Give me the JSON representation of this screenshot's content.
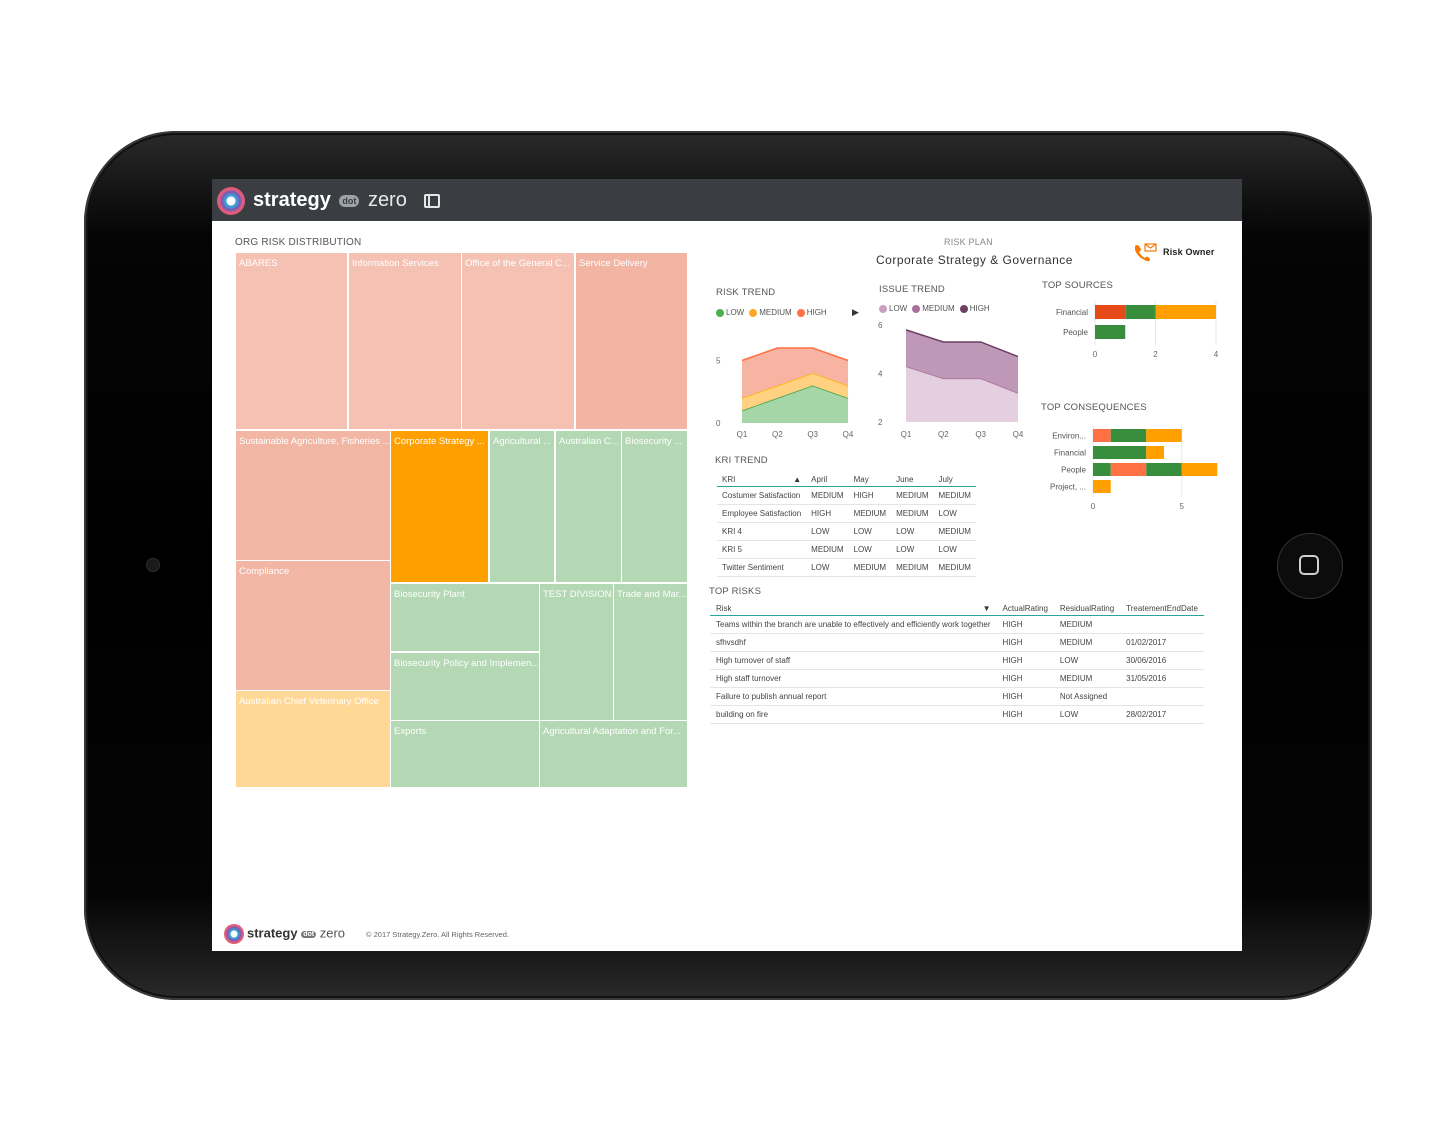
{
  "app": {
    "brand_main": "strategy",
    "brand_dot": "dot",
    "brand_zero": "zero"
  },
  "treemap": {
    "title": "ORG RISK DISTRIBUTION",
    "tiles": [
      {
        "label": "ABARES",
        "color": "#f5c1b3"
      },
      {
        "label": "Information Services",
        "color": "#f5c1b3"
      },
      {
        "label": "Office of the General C...",
        "color": "#f5c1b3"
      },
      {
        "label": "Service Delivery",
        "color": "#f2b4a3"
      },
      {
        "label": "Sustainable Agriculture, Fisheries ...",
        "color": "#f2b6a5"
      },
      {
        "label": "Corporate Strategy ...",
        "color": "#ffa000"
      },
      {
        "label": "Agricultural ...",
        "color": "#b3d8b3"
      },
      {
        "label": "Australian C...",
        "color": "#b3d8b3"
      },
      {
        "label": "Biosecurity ...",
        "color": "#b3d8b3"
      },
      {
        "label": "Compliance",
        "color": "#f2b6a5"
      },
      {
        "label": "Biosecurity Plant",
        "color": "#b3d8b3"
      },
      {
        "label": "TEST DIVISION",
        "color": "#b3d8b3"
      },
      {
        "label": "Trade and Mar...",
        "color": "#b3d8b3"
      },
      {
        "label": "Biosecurity Policy and Implemen...",
        "color": "#b3d8b3"
      },
      {
        "label": "Australian Chief Veterinary Office",
        "color": "#ffd898"
      },
      {
        "label": "Exports",
        "color": "#b3d8b3"
      },
      {
        "label": "Agricultural Adaptation and For...",
        "color": "#b3d8b3"
      }
    ]
  },
  "risk_plan": {
    "caption": "RISK PLAN",
    "name": "Corporate Strategy & Governance",
    "owner_label": "Risk Owner"
  },
  "risk_trend": {
    "title": "RISK TREND",
    "legend": [
      {
        "label": "LOW",
        "color": "#4caf50"
      },
      {
        "label": "MEDIUM",
        "color": "#ffa726"
      },
      {
        "label": "HIGH",
        "color": "#ff7043"
      }
    ],
    "chart_data": {
      "type": "area",
      "categories": [
        "Q1",
        "Q2",
        "Q3",
        "Q4"
      ],
      "yticks": [
        "0",
        "5"
      ],
      "ylim": [
        0,
        8
      ],
      "series": [
        {
          "name": "LOW",
          "values": [
            1,
            2,
            3,
            2
          ]
        },
        {
          "name": "MEDIUM",
          "values": [
            1,
            1,
            1,
            1
          ]
        },
        {
          "name": "HIGH",
          "values": [
            3,
            3,
            2,
            2
          ]
        }
      ]
    }
  },
  "issue_trend": {
    "title": "ISSUE TREND",
    "legend": [
      {
        "label": "LOW",
        "color": "#c9a0c0"
      },
      {
        "label": "MEDIUM",
        "color": "#a86f9a"
      },
      {
        "label": "HIGH",
        "color": "#6d3f63"
      }
    ],
    "chart_data": {
      "type": "area",
      "categories": [
        "Q1",
        "Q2",
        "Q3",
        "Q4"
      ],
      "yticks": [
        "2",
        "4",
        "6"
      ],
      "ylim": [
        2,
        6
      ],
      "series": [
        {
          "name": "LOW",
          "values": [
            4.3,
            3.8,
            3.8,
            3.2
          ]
        },
        {
          "name": "HIGH",
          "values": [
            5.8,
            5.3,
            5.3,
            4.7
          ]
        }
      ]
    }
  },
  "top_sources": {
    "title": "TOP SOURCES",
    "chart_data": {
      "type": "bar",
      "orientation": "horizontal",
      "categories": [
        "Financial",
        "People"
      ],
      "xticks": [
        "0",
        "2",
        "4"
      ],
      "xlim": [
        0,
        4
      ],
      "segments": [
        [
          {
            "value": 1,
            "color": "#e64a19"
          },
          {
            "value": 1,
            "color": "#388e3c"
          },
          {
            "value": 2,
            "color": "#ffa000"
          }
        ],
        [
          {
            "value": 1,
            "color": "#388e3c"
          }
        ]
      ]
    }
  },
  "top_consequences": {
    "title": "TOP CONSEQUENCES",
    "chart_data": {
      "type": "bar",
      "orientation": "horizontal",
      "categories": [
        "Environ...",
        "Financial",
        "People",
        "Project, ..."
      ],
      "xticks": [
        "0",
        "5"
      ],
      "xlim": [
        0,
        8
      ],
      "segments": [
        [
          {
            "value": 1,
            "color": "#ff7043"
          },
          {
            "value": 2,
            "color": "#388e3c"
          },
          {
            "value": 2,
            "color": "#ffa000"
          }
        ],
        [
          {
            "value": 3,
            "color": "#388e3c"
          },
          {
            "value": 1,
            "color": "#ffa000"
          }
        ],
        [
          {
            "value": 1,
            "color": "#388e3c"
          },
          {
            "value": 2,
            "color": "#ff7043"
          },
          {
            "value": 2,
            "color": "#388e3c"
          },
          {
            "value": 2,
            "color": "#ffa000"
          }
        ],
        [
          {
            "value": 1,
            "color": "#ffa000"
          }
        ]
      ]
    }
  },
  "kri_trend": {
    "title": "KRI TREND",
    "columns": [
      "KRI",
      "April",
      "May",
      "June",
      "July"
    ],
    "rows": [
      [
        "Costumer Satisfaction",
        "MEDIUM",
        "HIGH",
        "MEDIUM",
        "MEDIUM"
      ],
      [
        "Employee Satisfaction",
        "HIGH",
        "MEDIUM",
        "MEDIUM",
        "LOW"
      ],
      [
        "KRI 4",
        "LOW",
        "LOW",
        "LOW",
        "MEDIUM"
      ],
      [
        "KRI 5",
        "MEDIUM",
        "LOW",
        "LOW",
        "LOW"
      ],
      [
        "Twitter Sentiment",
        "LOW",
        "MEDIUM",
        "MEDIUM",
        "MEDIUM"
      ]
    ]
  },
  "top_risks": {
    "title": "TOP RISKS",
    "columns": [
      "Risk",
      "ActualRating",
      "ResidualRating",
      "TreatementEndDate"
    ],
    "rows": [
      [
        "Teams within the branch are unable to effectively and efficiently work together",
        "HIGH",
        "MEDIUM",
        ""
      ],
      [
        "sfhvsdhf",
        "HIGH",
        "MEDIUM",
        "01/02/2017"
      ],
      [
        "High turnover of staff",
        "HIGH",
        "LOW",
        "30/06/2016"
      ],
      [
        "High staff turnover",
        "HIGH",
        "MEDIUM",
        "31/05/2016"
      ],
      [
        "Failure to publish annual report",
        "HIGH",
        "Not Assigned",
        ""
      ],
      [
        " building on fire",
        "HIGH",
        "LOW",
        "28/02/2017"
      ]
    ]
  },
  "footer": {
    "copyright": "© 2017 Strategy.Zero. All Rights Reserved."
  }
}
